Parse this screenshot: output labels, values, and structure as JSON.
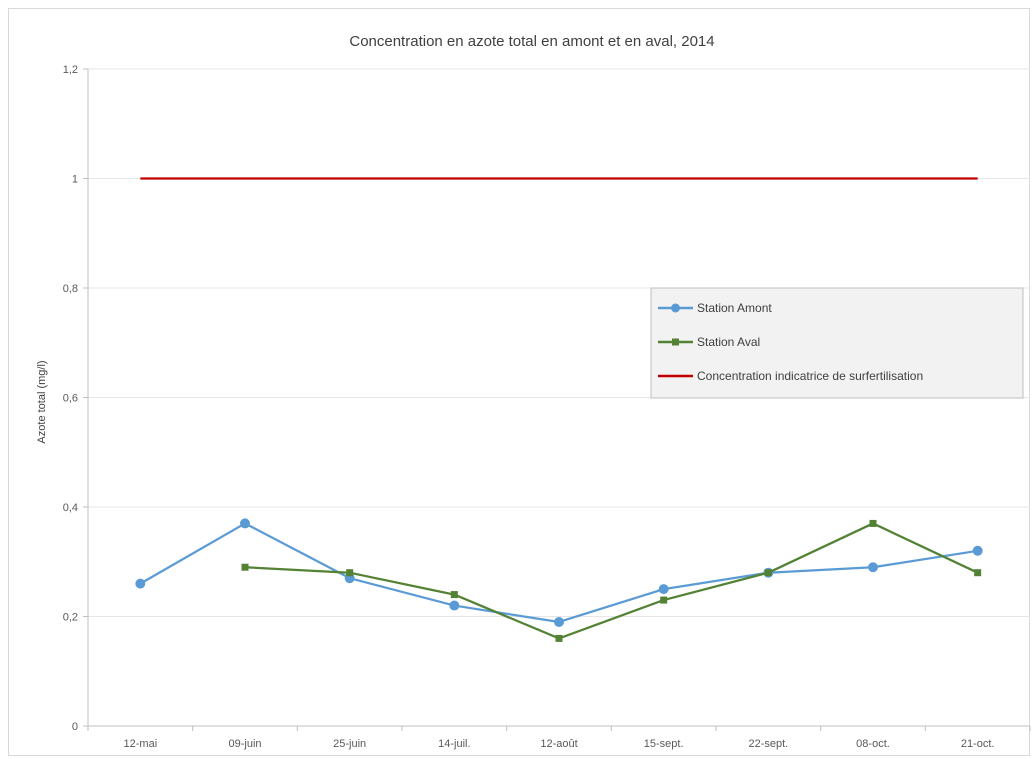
{
  "chart_data": {
    "type": "line",
    "title": "Concentration en azote total en amont et en aval, 2014",
    "ylabel": "Azote total (mg/l)",
    "xlabel": "",
    "ylim": [
      0,
      1.2
    ],
    "yticks": [
      "0",
      "0,2",
      "0,4",
      "0,6",
      "0,8",
      "1",
      "1,2"
    ],
    "ytick_values": [
      0,
      0.2,
      0.4,
      0.6,
      0.8,
      1.0,
      1.2
    ],
    "categories": [
      "12-mai",
      "09-juin",
      "25-juin",
      "14-juil.",
      "12-août",
      "15-sept.",
      "22-sept.",
      "08-oct.",
      "21-oct."
    ],
    "grid": "horizontal",
    "legend_position": "right",
    "series": [
      {
        "name": "Station Amont",
        "color": "#5b9bd5",
        "marker": "circle",
        "values": [
          0.26,
          0.37,
          0.27,
          0.22,
          0.19,
          0.25,
          0.28,
          0.29,
          0.32
        ]
      },
      {
        "name": "Station Aval",
        "color": "#548235",
        "marker": "square",
        "values": [
          null,
          0.29,
          0.28,
          0.24,
          0.16,
          0.23,
          0.28,
          0.37,
          0.28
        ]
      },
      {
        "name": "Concentration indicatrice de surfertilisation",
        "color": "#c00000",
        "marker": "none",
        "values": [
          1,
          1,
          1,
          1,
          1,
          1,
          1,
          1,
          1
        ]
      }
    ]
  }
}
